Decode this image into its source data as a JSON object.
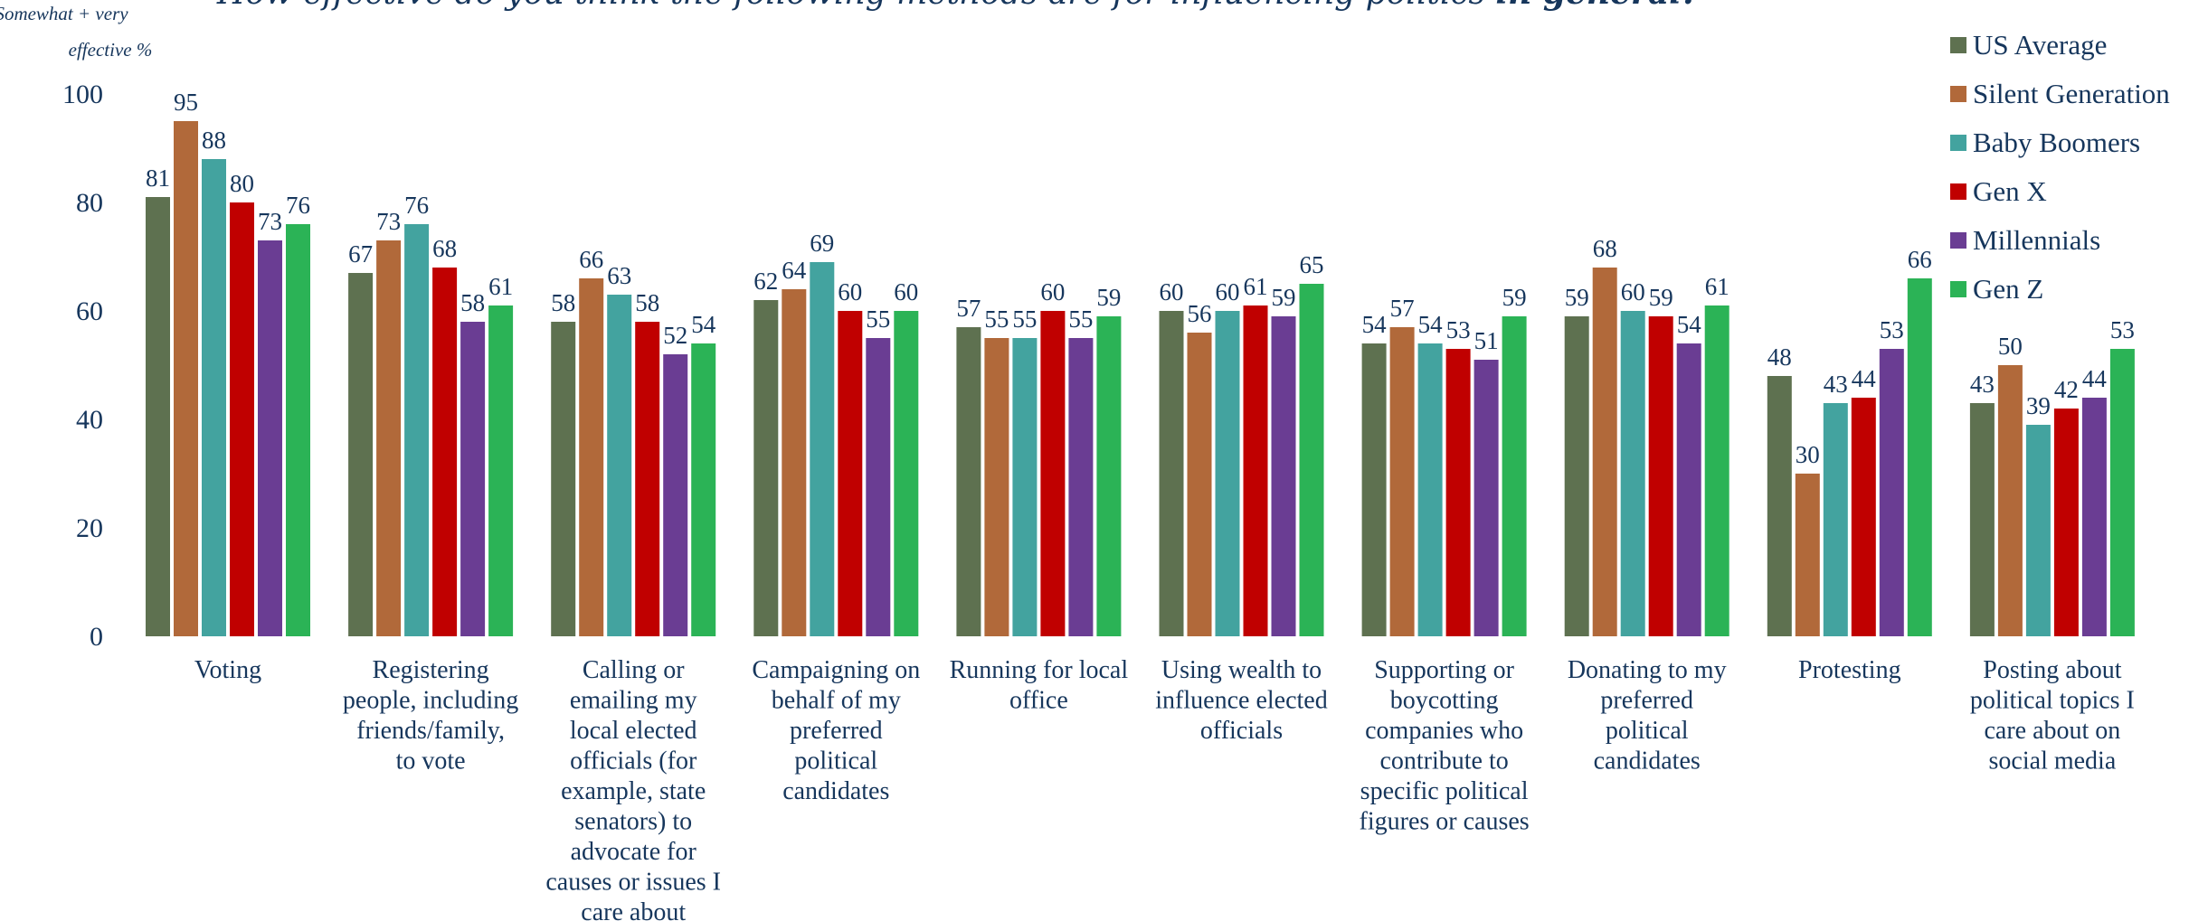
{
  "chart_data": {
    "type": "bar",
    "title": "How effective do you think the following methods are for influencing politics ",
    "title_emphasis": "in general?",
    "ylabel_line1": "Somewhat + very",
    "ylabel_line2": "effective %",
    "ylim": [
      0,
      100
    ],
    "yticks": [
      0,
      20,
      40,
      60,
      80,
      100
    ],
    "grid": false,
    "legend_position": "top-right",
    "categories": [
      [
        "Voting"
      ],
      [
        "Registering",
        "people, including",
        "friends/family,",
        "to vote"
      ],
      [
        "Calling or",
        "emailing my",
        "local elected",
        "officials (for",
        "example, state",
        "senators) to",
        "advocate for",
        "causes or issues I",
        "care about"
      ],
      [
        "Campaigning on",
        "behalf of my",
        "preferred",
        "political",
        "candidates"
      ],
      [
        "Running for local",
        "office"
      ],
      [
        "Using wealth to",
        "influence elected",
        "officials"
      ],
      [
        "Supporting or",
        "boycotting",
        "companies who",
        "contribute to",
        "specific political",
        "figures or causes"
      ],
      [
        "Donating to my",
        "preferred",
        "political",
        "candidates"
      ],
      [
        "Protesting"
      ],
      [
        "Posting about",
        "political topics I",
        "care about on",
        "social media"
      ]
    ],
    "series": [
      {
        "name": "US Average",
        "color": "#5e7150",
        "values": [
          81,
          67,
          58,
          62,
          57,
          60,
          54,
          59,
          48,
          43
        ]
      },
      {
        "name": "Silent Generation",
        "color": "#b1693a",
        "values": [
          95,
          73,
          66,
          64,
          55,
          56,
          57,
          68,
          30,
          50
        ]
      },
      {
        "name": "Baby Boomers",
        "color": "#43a39f",
        "values": [
          88,
          76,
          63,
          69,
          55,
          60,
          54,
          60,
          43,
          39
        ]
      },
      {
        "name": "Gen X",
        "color": "#c00000",
        "values": [
          80,
          68,
          58,
          60,
          60,
          61,
          53,
          59,
          44,
          42
        ]
      },
      {
        "name": "Millennials",
        "color": "#6a3d93",
        "values": [
          73,
          58,
          52,
          55,
          55,
          59,
          51,
          54,
          53,
          44
        ]
      },
      {
        "name": "Gen Z",
        "color": "#2bb356",
        "values": [
          76,
          61,
          54,
          60,
          59,
          65,
          59,
          61,
          66,
          53
        ]
      }
    ]
  }
}
